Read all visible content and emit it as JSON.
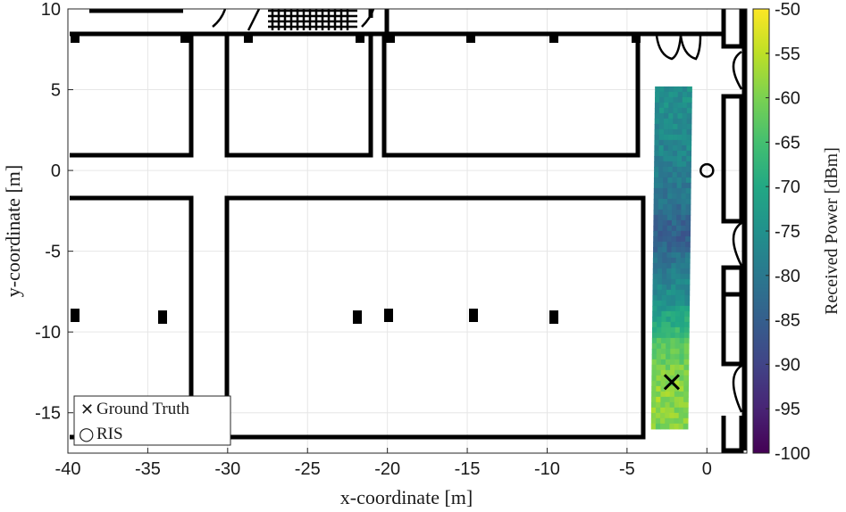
{
  "chart_data": {
    "type": "heatmap",
    "xlabel": "x-coordinate [m]",
    "ylabel": "y-coordinate [m]",
    "xlim": [
      -40,
      2.5
    ],
    "ylim": [
      -17.5,
      10
    ],
    "xticks": [
      -40,
      -35,
      -30,
      -25,
      -20,
      -15,
      -10,
      -5,
      0
    ],
    "yticks": [
      10,
      5,
      0,
      -5,
      -10,
      -15
    ],
    "grid": true,
    "colorbar": {
      "label": "Received Power [dBm]",
      "range": [
        -100,
        -50
      ],
      "ticks": [
        -50,
        -55,
        -60,
        -65,
        -70,
        -75,
        -80,
        -85,
        -90,
        -95,
        -100
      ],
      "colormap": "viridis"
    },
    "heatmap_region": {
      "x_range": [
        -3.5,
        -1.2
      ],
      "y_range": [
        -16,
        5.2
      ],
      "note_values": [
        {
          "y": 5,
          "power": -75
        },
        {
          "y": 0,
          "power": -78
        },
        {
          "y": -4,
          "power": -85
        },
        {
          "y": -8,
          "power": -75
        },
        {
          "y": -11,
          "power": -62
        },
        {
          "y": -14,
          "power": -58
        },
        {
          "y": -16,
          "power": -60
        }
      ]
    },
    "markers": [
      {
        "name": "Ground Truth",
        "symbol": "x",
        "x": -2.2,
        "y": -13.1
      },
      {
        "name": "RIS",
        "symbol": "o",
        "x": 0,
        "y": 0
      }
    ],
    "legend": {
      "placement": "bottom-left",
      "entries": [
        "Ground Truth",
        "RIS"
      ]
    },
    "legend_symbols": {
      "ground_truth": "✕",
      "ris": "○"
    },
    "colors": {
      "axis": "#262626",
      "grid": "#e6e6e6",
      "wall": "#000000"
    }
  }
}
